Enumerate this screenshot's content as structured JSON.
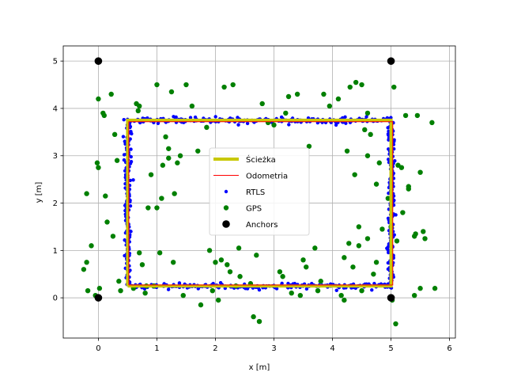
{
  "chart_data": {
    "type": "scatter",
    "title": "",
    "xlabel": "x [m]",
    "ylabel": "y [m]",
    "xlim": [
      -0.6,
      6.1
    ],
    "ylim": [
      -0.85,
      5.32
    ],
    "xticks": [
      0,
      1,
      2,
      3,
      4,
      5,
      6
    ],
    "yticks": [
      0,
      1,
      2,
      3,
      4,
      5
    ],
    "grid": true,
    "legend_position": "center",
    "colors": {
      "path": "#c8c800",
      "odometry": "#ff0000",
      "rtls": "#0000ff",
      "gps": "#008000",
      "anchors": "#000000",
      "grid": "#b0b0b0"
    },
    "legend": [
      "Ścieżka",
      "Odometria",
      "RTLS",
      "GPS",
      "Anchors"
    ],
    "path": {
      "name": "Ścieżka",
      "x": [
        0.5,
        5.0,
        5.0,
        0.5,
        0.5
      ],
      "y": [
        0.25,
        0.25,
        3.75,
        3.75,
        0.25
      ]
    },
    "odometry": {
      "name": "Odometria",
      "x": [
        0.52,
        5.03,
        5.03,
        0.52,
        0.52
      ],
      "y": [
        0.27,
        0.27,
        3.72,
        3.72,
        0.27
      ]
    },
    "rtls": {
      "name": "RTLS",
      "rectangle": {
        "x": [
          0.5,
          5.0
        ],
        "y": [
          0.25,
          3.75
        ]
      },
      "noise_sd": 0.03,
      "approx_count": 700
    },
    "gps": {
      "name": "GPS",
      "x": [
        -0.2,
        0.0,
        0.1,
        0.22,
        0.28,
        -0.25,
        -0.02,
        0.32,
        -0.05,
        0.12,
        0.25,
        -0.2,
        0.35,
        0.0,
        -0.12,
        -0.18,
        0.02,
        0.15,
        0.38,
        0.08,
        0.6,
        0.7,
        0.65,
        0.85,
        0.95,
        1.0,
        1.15,
        1.25,
        1.35,
        1.1,
        1.2,
        1.4,
        1.5,
        0.75,
        0.9,
        1.05,
        1.3,
        1.6,
        0.8,
        1.2,
        1.28,
        1.45,
        0.68,
        1.0,
        1.08,
        0.82,
        0.7,
        1.7,
        2.15,
        2.3,
        2.1,
        2.4,
        1.85,
        2.0,
        1.95,
        2.05,
        2.2,
        2.25,
        1.75,
        2.35,
        1.9,
        2.42,
        2.7,
        2.8,
        3.25,
        3.4,
        3.2,
        3.6,
        3.85,
        3.95,
        4.1,
        2.65,
        2.75,
        2.9,
        3.0,
        3.1,
        3.5,
        3.7,
        3.8,
        3.3,
        3.45,
        2.6,
        3.15,
        3.55,
        3.75,
        4.3,
        4.4,
        4.5,
        4.55,
        4.65,
        4.8,
        4.95,
        4.2,
        4.35,
        4.45,
        4.6,
        4.7,
        4.85,
        4.25,
        4.15,
        4.5,
        4.6,
        4.38,
        4.75,
        4.28,
        4.2,
        4.6,
        4.75,
        4.45,
        5.05,
        5.25,
        5.45,
        5.5,
        5.7,
        5.3,
        5.4,
        5.55,
        5.2,
        5.0,
        5.1,
        5.42,
        5.58,
        5.12,
        5.5,
        5.4,
        5.75,
        5.02,
        5.08,
        5.18,
        5.3
      ],
      "y": [
        2.2,
        4.2,
        3.85,
        4.3,
        3.45,
        0.6,
        2.85,
        2.9,
        0.05,
        2.15,
        1.3,
        0.75,
        0.35,
        2.75,
        1.1,
        0.15,
        0.2,
        1.6,
        0.15,
        3.9,
        0.2,
        4.05,
        4.1,
        1.9,
        0.25,
        4.5,
        3.4,
        4.35,
        2.85,
        2.8,
        3.15,
        3.0,
        4.5,
        0.7,
        2.6,
        0.95,
        2.2,
        4.05,
        0.1,
        2.95,
        0.75,
        0.05,
        3.95,
        1.9,
        2.1,
        0.25,
        0.95,
        3.1,
        4.45,
        4.5,
        0.8,
        1.05,
        3.6,
        0.75,
        0.15,
        -0.05,
        0.7,
        0.55,
        -0.15,
        0.25,
        1.0,
        0.45,
        0.9,
        4.1,
        4.25,
        4.3,
        3.9,
        3.2,
        4.3,
        4.05,
        4.2,
        -0.4,
        -0.5,
        3.7,
        3.65,
        0.55,
        0.8,
        1.05,
        0.35,
        0.1,
        0.05,
        0.3,
        0.45,
        0.65,
        0.15,
        4.45,
        4.55,
        4.5,
        3.55,
        3.45,
        2.85,
        2.1,
        0.85,
        0.65,
        1.1,
        1.25,
        0.5,
        1.45,
        3.1,
        0.05,
        0.15,
        3.0,
        2.6,
        0.75,
        1.15,
        -0.05,
        3.9,
        2.4,
        1.5,
        4.45,
        3.85,
        3.85,
        2.65,
        3.7,
        2.35,
        1.3,
        1.4,
        1.8,
        1.5,
        1.2,
        1.35,
        1.25,
        2.8,
        0.2,
        0.05,
        0.2,
        -0.05,
        -0.55,
        2.75,
        2.3
      ]
    },
    "anchors": {
      "name": "Anchors",
      "x": [
        0,
        0,
        5,
        5
      ],
      "y": [
        0,
        5,
        0,
        5
      ]
    }
  }
}
